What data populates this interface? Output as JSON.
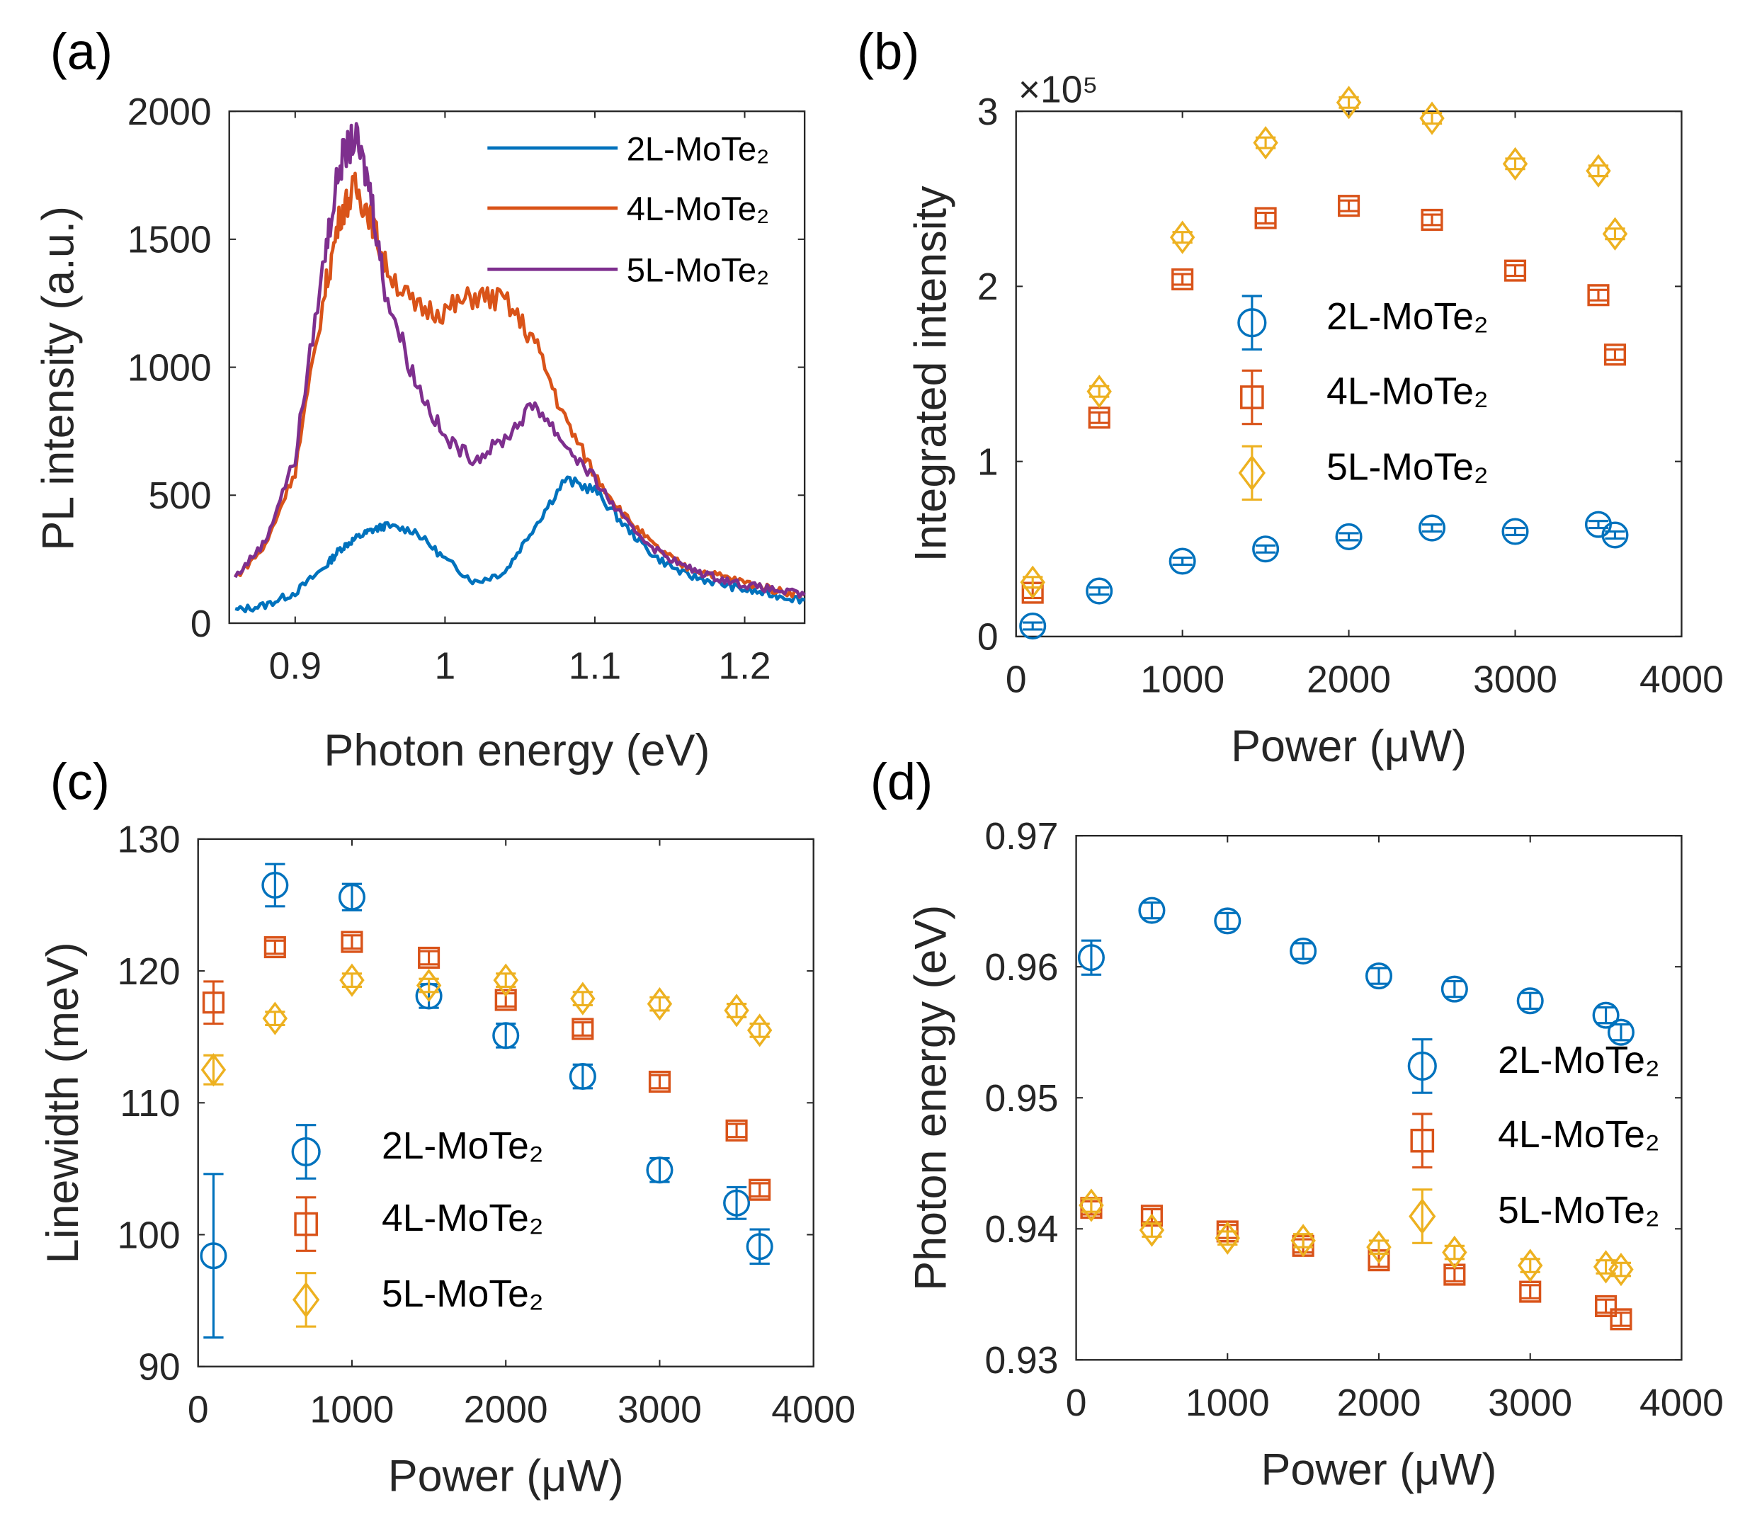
{
  "colors": {
    "2L": "#0072BD",
    "4L": "#D95319",
    "5L": "#EDB120",
    "5L_line": "#7E2F8E"
  },
  "chart_data": [
    {
      "panel": "(a)",
      "type": "line",
      "xlabel": "Photon energy (eV)",
      "ylabel": "PL intensity (a.u.)",
      "xlim": [
        0.856,
        1.24
      ],
      "ylim": [
        0,
        2000
      ],
      "xticks": [
        0.9,
        1,
        1.1,
        1.2
      ],
      "xtick_labels": [
        "0.9",
        "1",
        "1.1",
        "1.2"
      ],
      "yticks": [
        0,
        500,
        1000,
        1500,
        2000
      ],
      "ytick_labels": [
        "0",
        "500",
        "1000",
        "1500",
        "2000"
      ],
      "legend": "top-right",
      "x": [
        0.86,
        0.88,
        0.9,
        0.92,
        0.93,
        0.94,
        0.95,
        0.96,
        0.98,
        1.0,
        1.02,
        1.04,
        1.06,
        1.08,
        1.1,
        1.12,
        1.14,
        1.16,
        1.18,
        1.2,
        1.22,
        1.24
      ],
      "series": [
        {
          "name": "2L-MoTe₂",
          "key": "2L",
          "values": [
            50,
            70,
            120,
            220,
            290,
            330,
            360,
            380,
            360,
            250,
            160,
            200,
            380,
            560,
            520,
            380,
            260,
            190,
            160,
            130,
            110,
            90
          ]
        },
        {
          "name": "4L-MoTe₂",
          "key": "4L",
          "values": [
            180,
            300,
            600,
            1300,
            1600,
            1700,
            1600,
            1400,
            1230,
            1220,
            1280,
            1260,
            1100,
            800,
            580,
            420,
            300,
            220,
            190,
            160,
            130,
            110
          ]
        },
        {
          "name": "5L-MoTe₂",
          "key": "5L_line",
          "values": [
            180,
            320,
            650,
            1450,
            1800,
            1900,
            1700,
            1300,
            950,
            720,
            640,
            720,
            860,
            700,
            560,
            400,
            290,
            220,
            180,
            150,
            130,
            110
          ]
        }
      ]
    },
    {
      "panel": "(b)",
      "type": "scatter",
      "xlabel": "Power (μW)",
      "ylabel": "Integrated intensity",
      "multiplier": "×10⁵",
      "xlim": [
        0,
        4000
      ],
      "ylim": [
        0,
        3
      ],
      "xticks": [
        0,
        1000,
        2000,
        3000,
        4000
      ],
      "xtick_labels": [
        "0",
        "1000",
        "2000",
        "3000",
        "4000"
      ],
      "yticks": [
        0,
        1,
        2,
        3
      ],
      "ytick_labels": [
        "0",
        "1",
        "2",
        "3"
      ],
      "legend": "center-right",
      "x": [
        100,
        500,
        1000,
        1500,
        2000,
        2500,
        3000,
        3500,
        3600
      ],
      "series": [
        {
          "name": "2L-MoTe₂",
          "key": "2L",
          "marker": "circle",
          "values": [
            0.06,
            0.26,
            0.43,
            0.5,
            0.57,
            0.62,
            0.6,
            0.64,
            0.58
          ],
          "err": [
            0.02,
            0.02,
            0.02,
            0.02,
            0.02,
            0.02,
            0.02,
            0.02,
            0.02
          ]
        },
        {
          "name": "4L-MoTe₂",
          "key": "4L",
          "marker": "square",
          "values": [
            0.25,
            1.25,
            2.04,
            2.39,
            2.46,
            2.38,
            2.09,
            1.95,
            1.61
          ],
          "err": [
            0.03,
            0.03,
            0.03,
            0.03,
            0.03,
            0.03,
            0.03,
            0.03,
            0.03
          ]
        },
        {
          "name": "5L-MoTe₂",
          "key": "5L",
          "marker": "diamond",
          "values": [
            0.31,
            1.4,
            2.28,
            2.82,
            3.05,
            2.96,
            2.7,
            2.66,
            2.3
          ],
          "err": [
            0.03,
            0.03,
            0.03,
            0.03,
            0.03,
            0.03,
            0.03,
            0.03,
            0.03
          ]
        }
      ]
    },
    {
      "panel": "(c)",
      "type": "scatter",
      "xlabel": "Power (μW)",
      "ylabel": "Linewidth (meV)",
      "xlim": [
        0,
        4000
      ],
      "ylim": [
        90,
        130
      ],
      "xticks": [
        0,
        1000,
        2000,
        3000,
        4000
      ],
      "xtick_labels": [
        "0",
        "1000",
        "2000",
        "3000",
        "4000"
      ],
      "yticks": [
        90,
        100,
        110,
        120,
        130
      ],
      "ytick_labels": [
        "90",
        "100",
        "110",
        "120",
        "130"
      ],
      "legend": "bottom-left",
      "x": [
        100,
        500,
        1000,
        1500,
        2000,
        2500,
        3000,
        3500,
        3650
      ],
      "series": [
        {
          "name": "2L-MoTe₂",
          "key": "2L",
          "marker": "circle",
          "values": [
            98.4,
            126.5,
            125.6,
            118.1,
            115.1,
            112.0,
            104.9,
            102.4,
            99.1
          ],
          "err": [
            6.2,
            1.6,
            1.0,
            0.9,
            0.9,
            0.9,
            0.9,
            1.2,
            1.3
          ]
        },
        {
          "name": "4L-MoTe₂",
          "key": "4L",
          "marker": "square",
          "values": [
            117.6,
            121.8,
            122.2,
            121.0,
            117.8,
            115.6,
            111.6,
            107.9,
            103.4
          ],
          "err": [
            1.6,
            0.5,
            0.5,
            0.5,
            0.5,
            0.5,
            0.5,
            0.5,
            0.5
          ]
        },
        {
          "name": "5L-MoTe₂",
          "key": "5L",
          "marker": "diamond",
          "values": [
            112.5,
            116.4,
            119.3,
            118.9,
            119.3,
            117.9,
            117.5,
            117.0,
            115.5
          ],
          "err": [
            1.1,
            0.5,
            0.5,
            0.5,
            0.5,
            0.5,
            0.5,
            0.5,
            0.5
          ]
        }
      ]
    },
    {
      "panel": "(d)",
      "type": "scatter",
      "xlabel": "Power (μW)",
      "ylabel": "Photon energy (eV)",
      "xlim": [
        0,
        4000
      ],
      "ylim": [
        0.93,
        0.97
      ],
      "xticks": [
        0,
        1000,
        2000,
        3000,
        4000
      ],
      "xtick_labels": [
        "0",
        "1000",
        "2000",
        "3000",
        "4000"
      ],
      "yticks": [
        0.93,
        0.94,
        0.95,
        0.96,
        0.97
      ],
      "ytick_labels": [
        "0.93",
        "0.94",
        "0.95",
        "0.96",
        "0.97"
      ],
      "legend": "center-right",
      "x": [
        100,
        500,
        1000,
        1500,
        2000,
        2500,
        3000,
        3500,
        3600
      ],
      "series": [
        {
          "name": "2L-MoTe₂",
          "key": "2L",
          "marker": "circle",
          "values": [
            0.9607,
            0.9643,
            0.9635,
            0.9612,
            0.9593,
            0.9583,
            0.9574,
            0.9563,
            0.955
          ],
          "err": [
            0.0013,
            0.0006,
            0.0006,
            0.0006,
            0.0006,
            0.0006,
            0.0006,
            0.0006,
            0.0006
          ]
        },
        {
          "name": "4L-MoTe₂",
          "key": "4L",
          "marker": "square",
          "values": [
            0.9416,
            0.941,
            0.9398,
            0.9387,
            0.9376,
            0.9365,
            0.9352,
            0.9341,
            0.9331
          ],
          "err": [
            0.0005,
            0.0005,
            0.0005,
            0.0005,
            0.0005,
            0.0005,
            0.0005,
            0.0005,
            0.0005
          ]
        },
        {
          "name": "5L-MoTe₂",
          "key": "5L",
          "marker": "diamond",
          "values": [
            0.9418,
            0.9399,
            0.9393,
            0.9391,
            0.9386,
            0.9382,
            0.9372,
            0.9371,
            0.9369
          ],
          "err": [
            0.0005,
            0.0005,
            0.0005,
            0.0005,
            0.0005,
            0.0005,
            0.0005,
            0.0005,
            0.0005
          ]
        }
      ]
    }
  ]
}
